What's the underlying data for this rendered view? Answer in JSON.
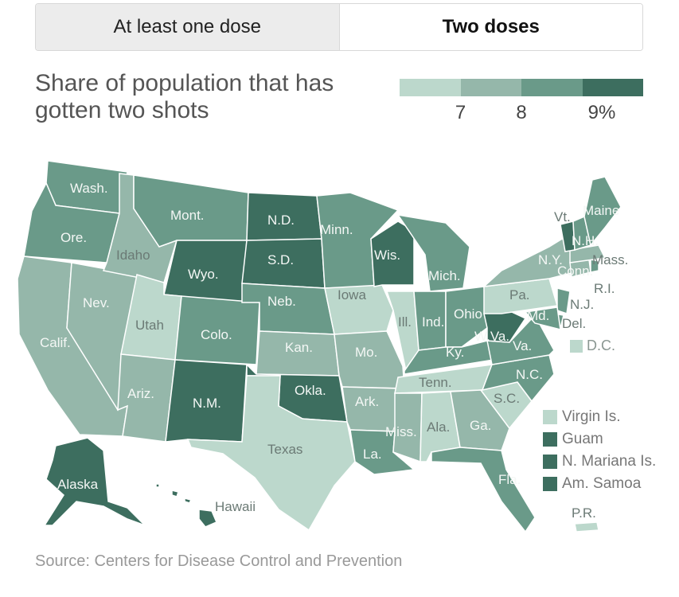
{
  "toggle": {
    "tabs": [
      {
        "label": "At least one dose",
        "active": false
      },
      {
        "label": "Two doses",
        "active": true
      }
    ]
  },
  "title": "Share of population that has gotten two shots",
  "legend": {
    "ticks": [
      "7",
      "8",
      "9%"
    ],
    "colors": [
      "#bcd8cc",
      "#95b7aa",
      "#6a9a89",
      "#3d6e5f"
    ]
  },
  "states": {
    "wash": "Wash.",
    "ore": "Ore.",
    "calif": "Calif.",
    "nev": "Nev.",
    "idaho": "Idaho",
    "mont": "Mont.",
    "wyo": "Wyo.",
    "utah": "Utah",
    "colo": "Colo.",
    "ariz": "Ariz.",
    "nm": "N.M.",
    "nd": "N.D.",
    "sd": "S.D.",
    "neb": "Neb.",
    "kan": "Kan.",
    "okla": "Okla.",
    "texas": "Texas",
    "minn": "Minn.",
    "iowa": "Iowa",
    "mo": "Mo.",
    "ark": "Ark.",
    "la": "La.",
    "wis": "Wis.",
    "ill": "Ill.",
    "mich": "Mich.",
    "ind": "Ind.",
    "ohio": "Ohio",
    "ky": "Ky.",
    "tenn": "Tenn.",
    "miss": "Miss.",
    "ala": "Ala.",
    "ga": "Ga.",
    "fla": "Fla.",
    "sc": "S.C.",
    "nc": "N.C.",
    "va": "Va.",
    "wva": "W.Va.",
    "pa": "Pa.",
    "ny": "N.Y.",
    "vt": "Vt.",
    "nh": "N.H.",
    "maine": "Maine",
    "mass": "Mass.",
    "ri": "R.I.",
    "conn": "Conn.",
    "nj": "N.J.",
    "del": "Del.",
    "md": "Md.",
    "alaska": "Alaska",
    "hawaii": "Hawaii",
    "pr": "P.R."
  },
  "dc": "D.C.",
  "territories": [
    {
      "label": "Virgin Is.",
      "color": "#bcd8cc"
    },
    {
      "label": "Guam",
      "color": "#3d6e5f"
    },
    {
      "label": "N. Mariana Is.",
      "color": "#3d6e5f"
    },
    {
      "label": "Am. Samoa",
      "color": "#3d6e5f"
    }
  ],
  "source": "Source: Centers for Disease Control and Prevention"
}
